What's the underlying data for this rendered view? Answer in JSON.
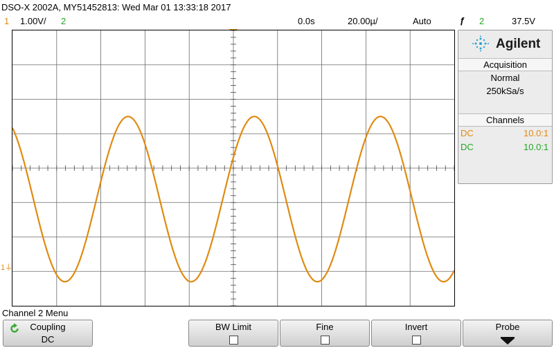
{
  "header": {
    "title": "DSO-X 2002A, MY51452813: Wed Mar 01 13:33:18 2017",
    "ch1_number": "1",
    "ch1_scale": "1.00V/",
    "ch2_number": "2",
    "time_delay": "0.0s",
    "time_scale": "20.00µ/",
    "trigger_mode": "Auto",
    "trigger_symbol": "ƒ",
    "trigger_source": "2",
    "trigger_level": "37.5V"
  },
  "side_panel": {
    "brand": "Agilent",
    "acquisition_title": "Acquisition",
    "acquisition_mode": "Normal",
    "sample_rate": "250kSa/s",
    "channels_title": "Channels",
    "channels": [
      {
        "coupling": "DC",
        "probe": "10.0:1",
        "color": "#e08a10"
      },
      {
        "coupling": "DC",
        "probe": "10.0:1",
        "color": "#22a822"
      }
    ]
  },
  "waveform": {
    "channel": "1",
    "color": "#e08a10",
    "type": "sine",
    "cycles_on_screen": 3.5,
    "amplitude_divisions": 2.4,
    "offset_divisions": -0.9,
    "grid_divisions": {
      "x": 10,
      "y": 8
    }
  },
  "marker": {
    "ch1_ground": "1"
  },
  "menu": {
    "title": "Channel 2 Menu",
    "softkeys": [
      {
        "label": "Coupling",
        "value": "DC"
      },
      {
        "label": "BW Limit",
        "value": ""
      },
      {
        "label": "Fine",
        "value": ""
      },
      {
        "label": "Invert",
        "value": ""
      },
      {
        "label": "Probe",
        "value": ""
      }
    ]
  }
}
